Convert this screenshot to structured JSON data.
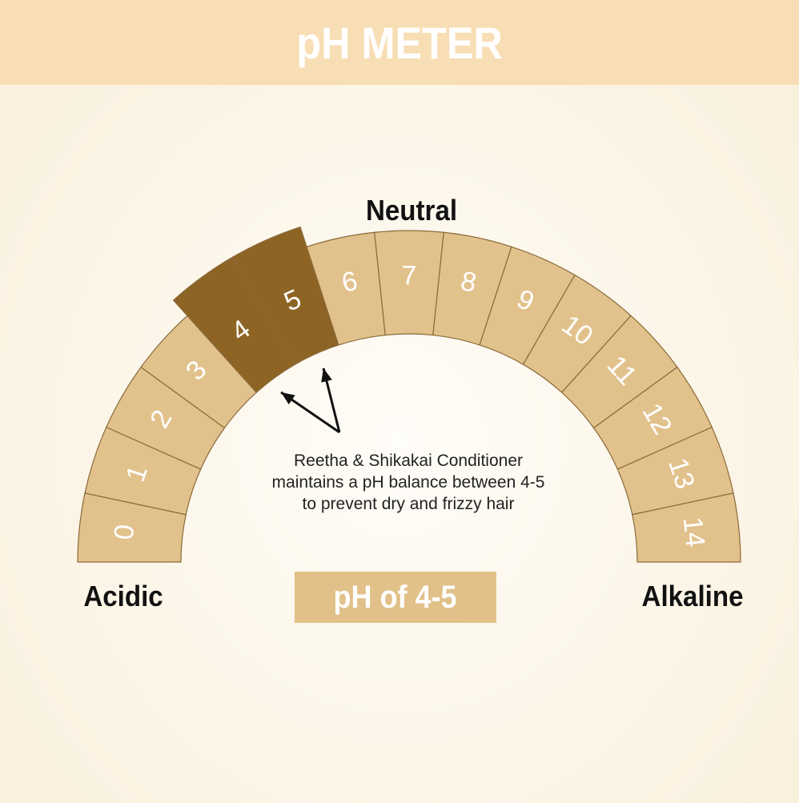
{
  "title": "pH METER",
  "labels": {
    "neutral": "Neutral",
    "acidic": "Acidic",
    "alkaline": "Alkaline"
  },
  "scale": [
    "0",
    "1",
    "2",
    "3",
    "4",
    "5",
    "6",
    "7",
    "8",
    "9",
    "10",
    "11",
    "12",
    "13",
    "14"
  ],
  "highlighted": [
    "4",
    "5"
  ],
  "description": [
    "Reetha & Shikakai Conditioner",
    "maintains a pH balance between 4-5",
    "to prevent dry and frizzy hair"
  ],
  "badge": "pH of 4-5",
  "colors": {
    "segment": "#e2c28c",
    "highlight": "#8e6424",
    "header": "#f8deb5",
    "outline": "#8a6a3a"
  }
}
